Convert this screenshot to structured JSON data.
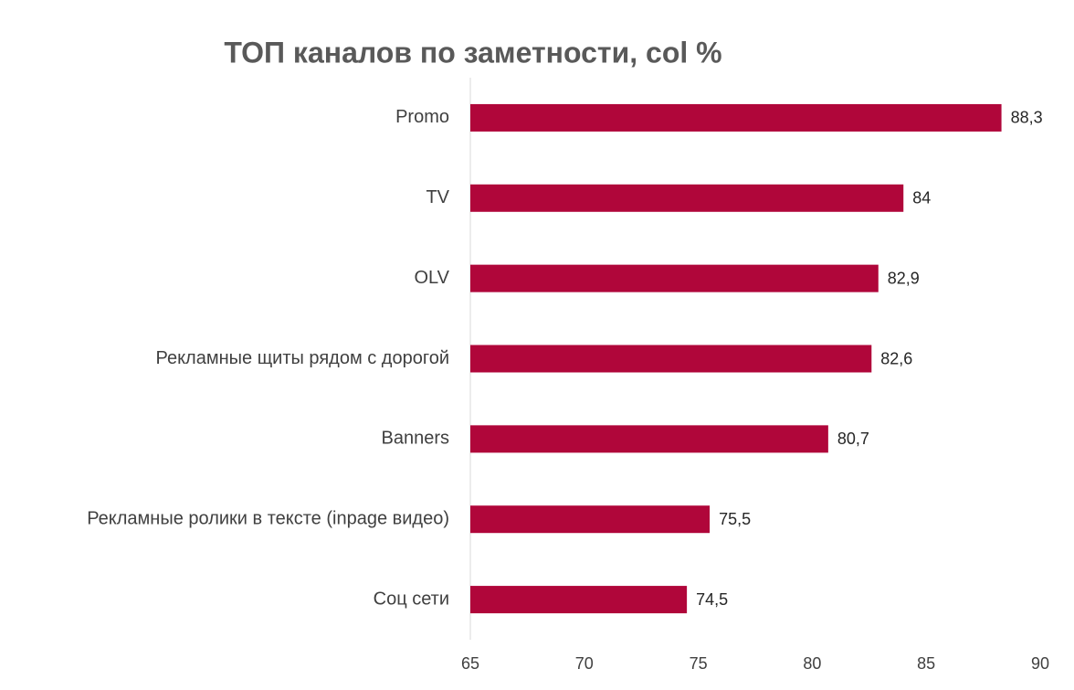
{
  "chart_data": {
    "type": "bar",
    "orientation": "horizontal",
    "title": "ТОП каналов по заметности, col %",
    "categories": [
      "Promo",
      "TV",
      "OLV",
      "Рекламные щиты рядом с дорогой",
      "Banners",
      "Рекламные ролики в тексте (inpage видео)",
      "Соц сети"
    ],
    "values": [
      88.3,
      84,
      82.9,
      82.6,
      80.7,
      75.5,
      74.5
    ],
    "value_labels": [
      "88,3",
      "84",
      "82,9",
      "82,6",
      "80,7",
      "75,5",
      "74,5"
    ],
    "color": "#b0063a",
    "xlim": [
      65,
      90
    ],
    "xticks": [
      65,
      70,
      75,
      80,
      85,
      90
    ],
    "grid": false
  }
}
